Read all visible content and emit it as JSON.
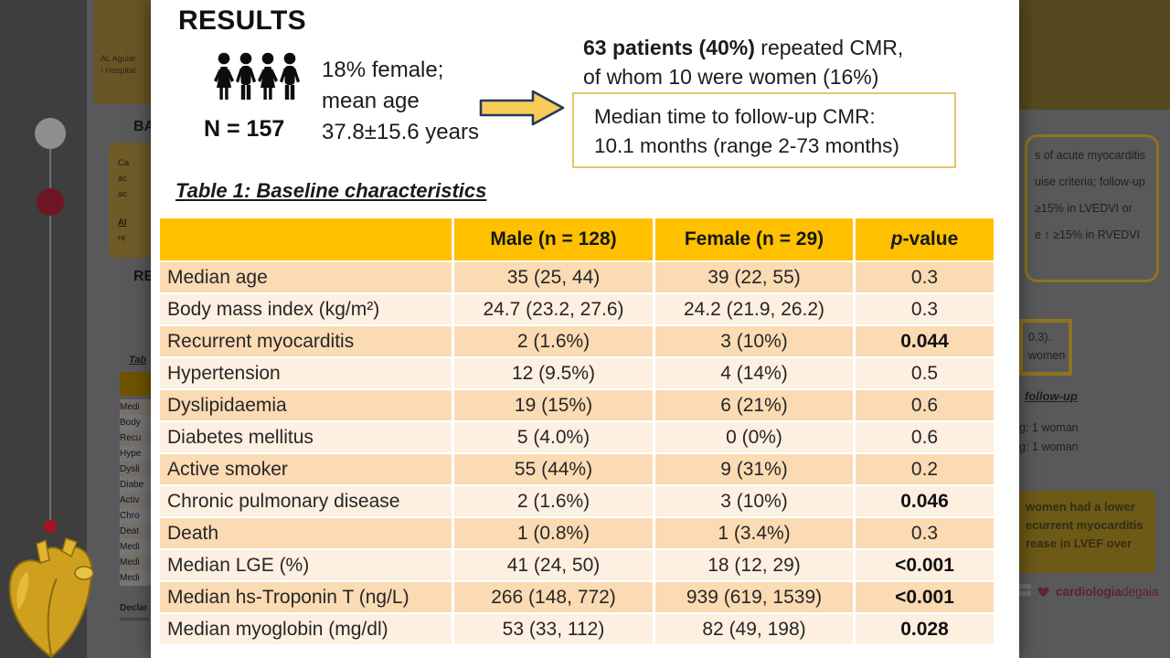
{
  "colors": {
    "table_header": "#FFC000",
    "row_dark": "#FBDBB4",
    "row_light": "#FDF0E1",
    "arrow_fill": "#F7CC56",
    "arrow_stroke": "#26395C",
    "box_border": "#E2C66A",
    "logo_red": "#5C222C"
  },
  "overlay": {
    "title": "RESULTS",
    "cohort": {
      "n_label": "N = 157",
      "description": [
        "18% female;",
        "mean age",
        "37.8±15.6 years"
      ]
    },
    "followup": {
      "line1_bold": "63 patients (40%)",
      "line1_rest": " repeated CMR,",
      "line2": "of whom 10 were women (16%)",
      "box": [
        "Median time to follow-up CMR:",
        "10.1 months (range 2-73 months)"
      ]
    },
    "table": {
      "title": "Table 1: Baseline characteristics",
      "headers": {
        "col0": "",
        "col1": "Male (n = 128)",
        "col2": "Female (n = 29)",
        "col3_italic": "p",
        "col3_rest": "-value"
      },
      "rows": [
        {
          "label": "Median age",
          "male": "35 (25, 44)",
          "female": "39 (22, 55)",
          "p": "0.3",
          "significant": false
        },
        {
          "label": "Body mass index (kg/m²)",
          "male": "24.7 (23.2, 27.6)",
          "female": "24.2 (21.9, 26.2)",
          "p": "0.3",
          "significant": false
        },
        {
          "label": "Recurrent myocarditis",
          "male": "2 (1.6%)",
          "female": "3 (10%)",
          "p": "0.044",
          "significant": true
        },
        {
          "label": "Hypertension",
          "male": "12 (9.5%)",
          "female": "4 (14%)",
          "p": "0.5",
          "significant": false
        },
        {
          "label": "Dyslipidaemia",
          "male": "19 (15%)",
          "female": "6 (21%)",
          "p": "0.6",
          "significant": false
        },
        {
          "label": "Diabetes mellitus",
          "male": "5 (4.0%)",
          "female": "0 (0%)",
          "p": "0.6",
          "significant": false
        },
        {
          "label": "Active smoker",
          "male": "55 (44%)",
          "female": "9 (31%)",
          "p": "0.2",
          "significant": false
        },
        {
          "label": "Chronic pulmonary disease",
          "male": "2 (1.6%)",
          "female": "3 (10%)",
          "p": "0.046",
          "significant": true
        },
        {
          "label": "Death",
          "male": "1 (0.8%)",
          "female": "1 (3.4%)",
          "p": "0.3",
          "significant": false
        },
        {
          "label": "Median LGE (%)",
          "male": "41 (24, 50)",
          "female": "18 (12, 29)",
          "p": "<0.001",
          "significant": true
        },
        {
          "label": "Median hs-Troponin T (ng/L)",
          "male": "266 (148, 772)",
          "female": "939 (619, 1539)",
          "p": "<0.001",
          "significant": true
        },
        {
          "label": "Median myoglobin (mg/dl)",
          "male": "53 (33, 112)",
          "female": "82 (49, 198)",
          "p": "0.028",
          "significant": true
        }
      ]
    }
  },
  "poster": {
    "author_fragment": [
      "AL Aguiar",
      "¹ Hospital"
    ],
    "background_heading_fragment": "BA",
    "background_box_lines": [
      "Ca",
      "ac",
      "ac"
    ],
    "abstract_bold_fragment": "Al",
    "abstract_rest_fragment": "re",
    "results_heading_fragment": "RE",
    "mini_table_title_fragment": "Tab",
    "mini_table_rows_fragment": [
      "Medi",
      "Body",
      "Recu",
      "Hype",
      "Dysli",
      "Diabe",
      "Activ",
      "Chro",
      "Deat",
      "Medi",
      "Medi",
      "Medi"
    ],
    "declarations_fragment": "Declar",
    "right_criteria_box_fragment": [
      "s of acute myocarditis",
      "uise criteria; follow-up",
      "≥15% in LVEDVI or",
      "e ↑ ≥15% in RVEDVI"
    ],
    "right_mid_box_fragment": [
      "0.3).",
      "women"
    ],
    "right_followup_fragment": "follow-up",
    "right_list_fragment": [
      "g: 1 woman",
      "g: 1 woman"
    ],
    "right_conclusion_box_fragment": [
      "women had a lower",
      "ecurrent myocarditis",
      "rease in LVEF over"
    ],
    "logo_text_bold": "cardiologia",
    "logo_text_light": "degaia"
  }
}
